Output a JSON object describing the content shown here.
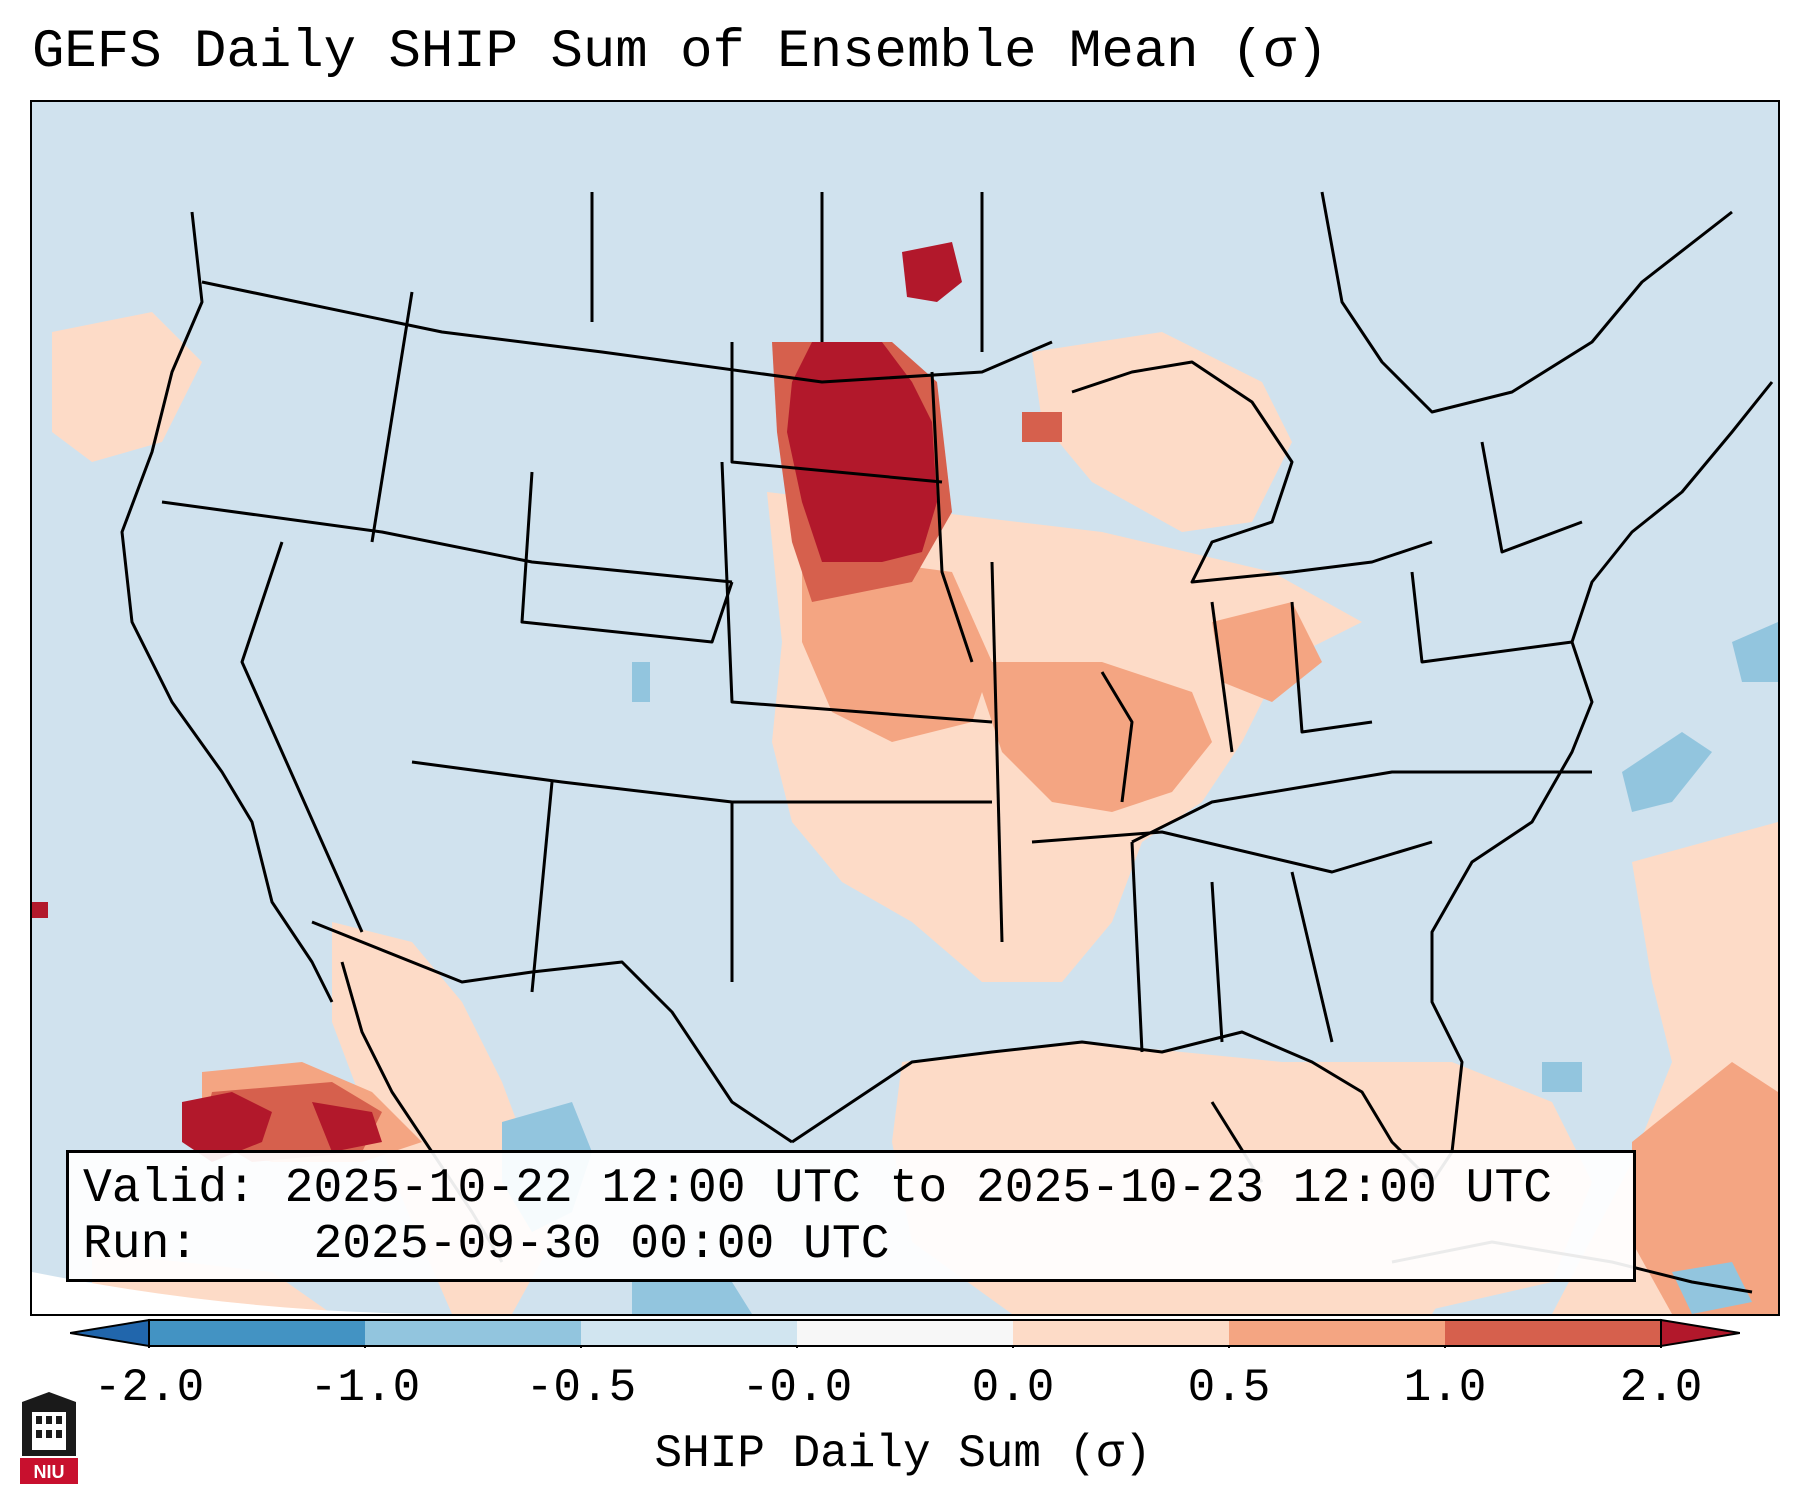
{
  "title": "GEFS Daily SHIP Sum of Ensemble Mean (σ)",
  "info": {
    "valid_label": "Valid:",
    "valid_value": "2025-10-22 12:00 UTC to 2025-10-23 12:00 UTC",
    "run_label": "Run:",
    "run_value": "2025-09-30 00:00 UTC"
  },
  "colorbar": {
    "label": "SHIP Daily Sum (σ)",
    "ticks": [
      "-2.0",
      "-1.0",
      "-0.5",
      "-0.0",
      "0.0",
      "0.5",
      "1.0",
      "2.0"
    ],
    "bins": [
      {
        "range": "< -2.0",
        "color": "#2166ac"
      },
      {
        "range": "-2.0 to -1.0",
        "color": "#4393c3"
      },
      {
        "range": "-1.0 to -0.5",
        "color": "#92c5de"
      },
      {
        "range": "-0.5 to -0.0",
        "color": "#d1e5f0"
      },
      {
        "range": "-0.0 to 0.0",
        "color": "#f7f7f7"
      },
      {
        "range": "0.0 to 0.5",
        "color": "#fddbc7"
      },
      {
        "range": "0.5 to 1.0",
        "color": "#f4a582"
      },
      {
        "range": "1.0 to 2.0",
        "color": "#d6604d"
      },
      {
        "range": "> 2.0",
        "color": "#b2182b"
      }
    ]
  },
  "map": {
    "background_color": "#d0e2ee",
    "regions": [
      {
        "name": "North Dakota / South Dakota maximum",
        "category": "> 2.0",
        "color": "#b2182b"
      },
      {
        "name": "Nebraska / Kansas",
        "category": "1.0 to 2.0",
        "color": "#d6604d"
      },
      {
        "name": "Midwest / Missouri / Illinois",
        "category": "0.5 to 1.0",
        "color": "#f4a582"
      },
      {
        "name": "Central and Southern Plains, Gulf",
        "category": "0.0 to 0.5",
        "color": "#fddbc7"
      },
      {
        "name": "Gulf of California / Baja",
        "category": "> 2.0",
        "color": "#b2182b"
      },
      {
        "name": "Western Atlantic / Caribbean",
        "category": "0.5 to 1.0",
        "color": "#f4a582"
      },
      {
        "name": "Eastern Pacific / Atlantic patches",
        "category": "-1.0 to -0.5",
        "color": "#92c5de"
      }
    ]
  },
  "logo": {
    "text": "NIU"
  }
}
